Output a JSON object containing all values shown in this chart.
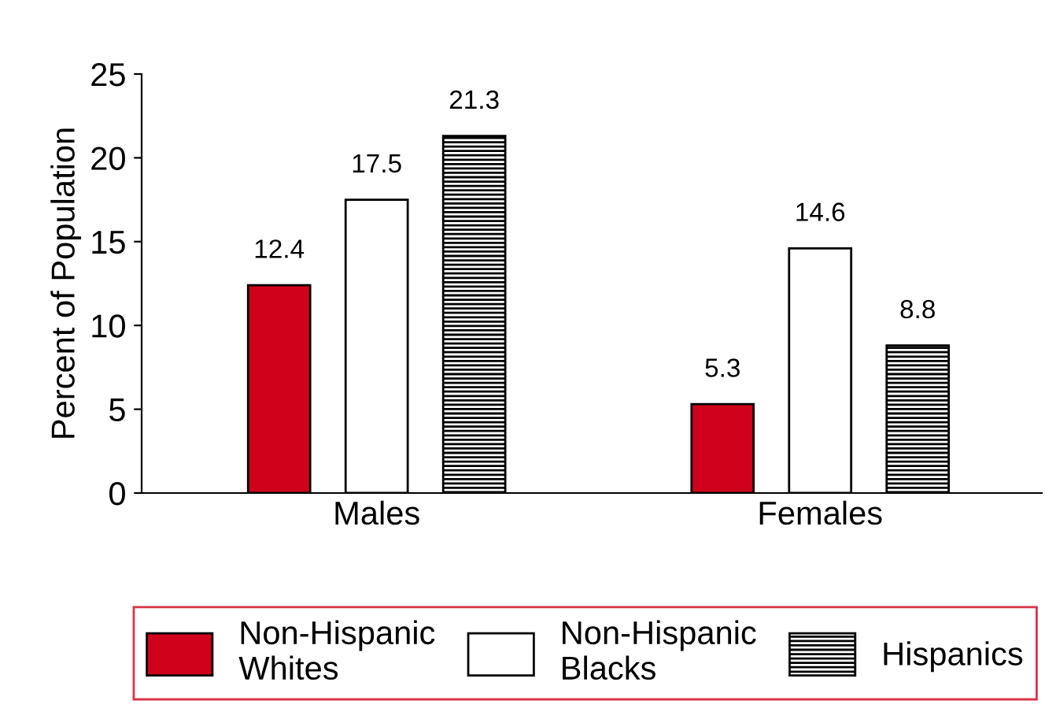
{
  "chart_data": {
    "type": "bar",
    "ylabel": "Percent of Population",
    "categories": [
      "Males",
      "Females"
    ],
    "series": [
      {
        "name": "Non-Hispanic\nWhites",
        "color": "#d0021b",
        "values": [
          12.4,
          5.3
        ]
      },
      {
        "name": "Non-Hispanic\nBlacks",
        "color": "#ffffff",
        "values": [
          17.5,
          14.6
        ]
      },
      {
        "name": "Hispanics",
        "color": "#000000",
        "values": [
          21.3,
          8.8
        ]
      }
    ],
    "ylim": [
      0,
      25
    ],
    "yticks": [
      0,
      5,
      10,
      15,
      20,
      25
    ],
    "data_labels": true,
    "grid": false,
    "legend": "bottom"
  }
}
